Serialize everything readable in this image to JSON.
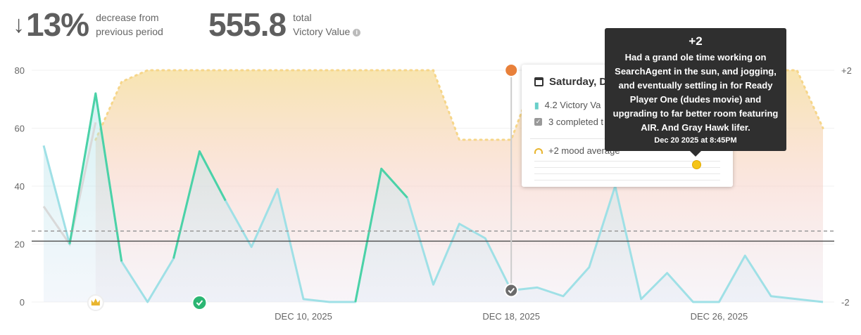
{
  "summary": {
    "change_arrow": "↓",
    "change_value": "13%",
    "change_caption_1": "decrease from",
    "change_caption_2": "previous period",
    "total_value": "555.8",
    "total_caption_1": "total",
    "total_caption_2": "Victory Value",
    "info_icon": "i"
  },
  "card": {
    "date": "Saturday, De",
    "victory": "4.2 Victory Va",
    "completed": "3 completed t",
    "mood": "+2 mood average"
  },
  "tooltip": {
    "title": "+2",
    "body": "Had a grand ole time working on SearchAgent in the sun, and jogging, and eventually settling in for Ready Player One (dudes movie) and upgrading to far better room featuring AIR. And Gray Hawk lifer.",
    "date": "Dec 20 2025 at 8:45PM"
  },
  "chart_data": {
    "type": "line",
    "start_date": "2025-11-30",
    "y_ticks": [
      "80",
      "60",
      "40",
      "20",
      "0"
    ],
    "y_right_ticks": [
      "+2",
      "-2"
    ],
    "x_ticks": [
      "DEC 10, 2025",
      "DEC 18, 2025",
      "DEC 26, 2025"
    ],
    "ylim": [
      0,
      80
    ],
    "y2lim": [
      -2,
      2
    ],
    "victory_values": [
      54,
      20,
      72,
      14,
      0,
      15,
      52,
      35,
      19,
      39,
      1,
      0,
      0,
      46,
      36,
      6,
      27,
      22,
      4,
      5,
      2,
      12,
      40,
      1,
      10,
      0,
      0,
      16,
      2,
      1,
      0
    ],
    "prior_values": [
      33,
      20,
      62
    ],
    "mood_values": [
      null,
      null,
      0.8,
      1.8,
      2,
      2,
      2,
      2,
      2,
      2,
      2,
      2,
      2,
      2,
      2,
      2,
      0.8,
      0.8,
      0.8,
      2,
      2,
      2,
      2,
      2,
      2,
      2,
      2,
      2,
      2,
      2,
      1.0
    ],
    "average": 21,
    "previous_average": 24.5,
    "selected_index": 18,
    "colors": {
      "victory": "#9fe0e6",
      "victory_strong": "#3ccf9b",
      "mood": "#f6d68a",
      "average": "#555555",
      "previous_average": "#999999",
      "marker": "#e8803a"
    }
  }
}
